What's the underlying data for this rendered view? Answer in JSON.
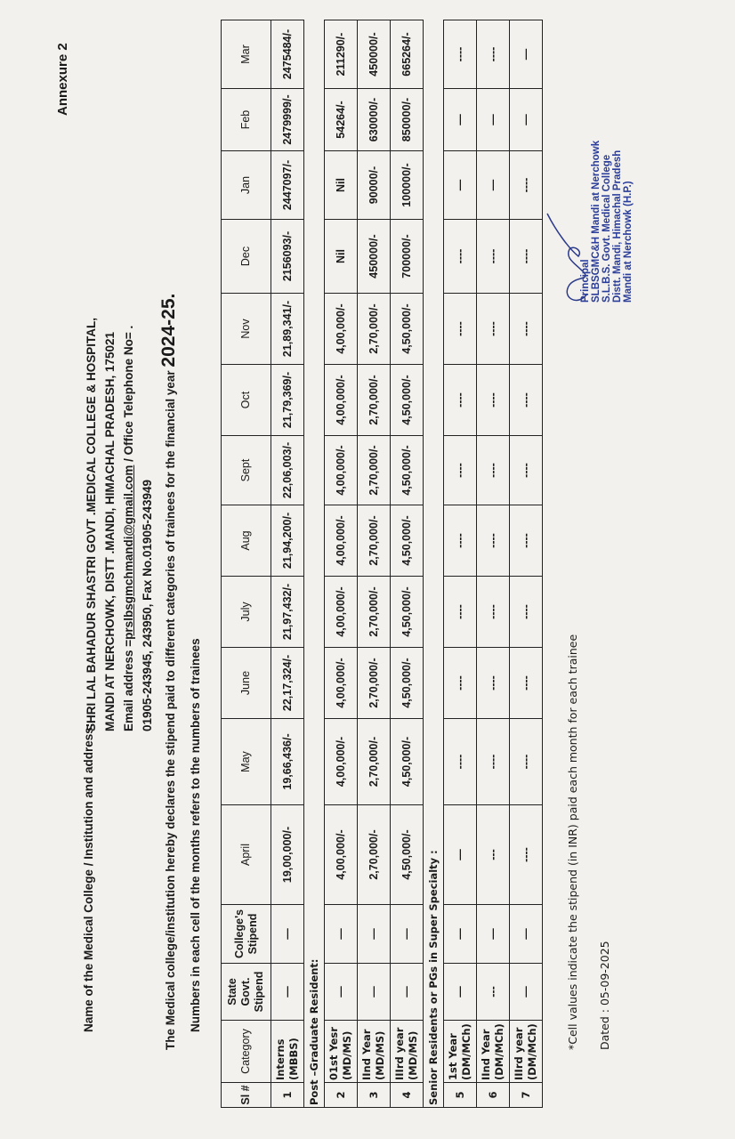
{
  "annexure": "Annexure 2",
  "name_label": "Name of the Medical College / Institution and address:",
  "address": {
    "line1": "SHRI LAL BAHADUR SHASTRI GOVT .MEDICAL COLLEGE & HOSPITAL,",
    "line2": "MANDI AT NERCHOWK, DISTT .MANDI, HIMACHAL PRADESH, 175021",
    "email_label": "Email address =",
    "email": "prslbsgmchmandi@gmail.com",
    "email_suffix": " / Office Telephone No= .",
    "line4": "01905-243945, 243950, Fax No.01905-243949"
  },
  "declaration": "The Medical college/institution hereby declares the stipend paid to different categories of trainees for the financial year ",
  "financial_year": "2024-25.",
  "note": "Numbers in each cell of the months refers to the numbers of trainees",
  "table": {
    "headers": [
      "Sl #",
      "Category",
      "State Govt. Stipend",
      "College's Stipend",
      "April",
      "May",
      "June",
      "July",
      "Aug",
      "Sept",
      "Oct",
      "Nov",
      "Dec",
      "Jan",
      "Feb",
      "Mar"
    ],
    "rows": [
      {
        "type": "data",
        "cells": [
          "1",
          "Interns (MBBS)",
          "—",
          "—",
          "19,00,000/-",
          "19,66,436/-",
          "22,17,324/-",
          "21,97,432/-",
          "21,94,200/-",
          "22,06,003/-",
          "21,79,369/-",
          "21,89,341/-",
          "2156093/-",
          "2447097/-",
          "2479999/-",
          "2475484/-"
        ]
      },
      {
        "type": "section",
        "label": "Post –Graduate Resident:"
      },
      {
        "type": "data",
        "cells": [
          "2",
          "01st Yesr (MD/MS)",
          "—",
          "—",
          "4,00,000/-",
          "4,00,000/-",
          "4,00,000/-",
          "4,00,000/-",
          "4,00,000/-",
          "4,00,000/-",
          "4,00,000/-",
          "4,00,000/-",
          "Nil",
          "Nil",
          "54264/-",
          "211290/-"
        ]
      },
      {
        "type": "data",
        "cells": [
          "3",
          "IInd Year (MD/MS)",
          "—",
          "—",
          "2,70,000/-",
          "2,70,000/-",
          "2,70,000/-",
          "2,70,000/-",
          "2,70,000/-",
          "2,70,000/-",
          "2,70,000/-",
          "2,70,000/-",
          "450000/-",
          "90000/-",
          "630000/-",
          "450000/-"
        ]
      },
      {
        "type": "data",
        "cells": [
          "4",
          "IIIrd year (MD/MS)",
          "—",
          "—",
          "4,50,000/-",
          "4,50,000/-",
          "4,50,000/-",
          "4,50,000/-",
          "4,50,000/-",
          "4,50,000/-",
          "4,50,000/-",
          "4,50,000/-",
          "700000/-",
          "100000/-",
          "850000/-",
          "665264/-"
        ]
      },
      {
        "type": "section",
        "label": "Senior Residents or PGs in Super Specialty :"
      },
      {
        "type": "data",
        "cells": [
          "5",
          "1st Year (DM/MCh)",
          "—",
          "—",
          "—",
          "----",
          "----",
          "----",
          "----",
          "----",
          "----",
          "----",
          "----",
          "—",
          "—",
          "----"
        ]
      },
      {
        "type": "data",
        "cells": [
          "6",
          "IInd Year (DM/MCh)",
          "---",
          "—",
          "---",
          "----",
          "----",
          "----",
          "----",
          "----",
          "----",
          "----",
          "----",
          "—",
          "—",
          "----"
        ]
      },
      {
        "type": "data",
        "cells": [
          "7",
          "IIIrd year (DM/MCh)",
          "—",
          "—",
          "----",
          "----",
          "----",
          "----",
          "----",
          "----",
          "----",
          "----",
          "----",
          "----",
          "—",
          "—"
        ]
      }
    ]
  },
  "footnote": "*Cell values indicate the stipend (in INR) paid each month for each trainee",
  "dated": "Dated : 05-09-2025",
  "stamp": {
    "lines": [
      "Principal",
      "SLBSGMC&H Mandi at Nerchowk",
      "S.L.B.S. Govt. Medical College",
      "Distt. Mandi, Himachal Pradesh",
      "Mandi at Nerchowk (H.P.)"
    ],
    "color": "#2a3d9a"
  }
}
